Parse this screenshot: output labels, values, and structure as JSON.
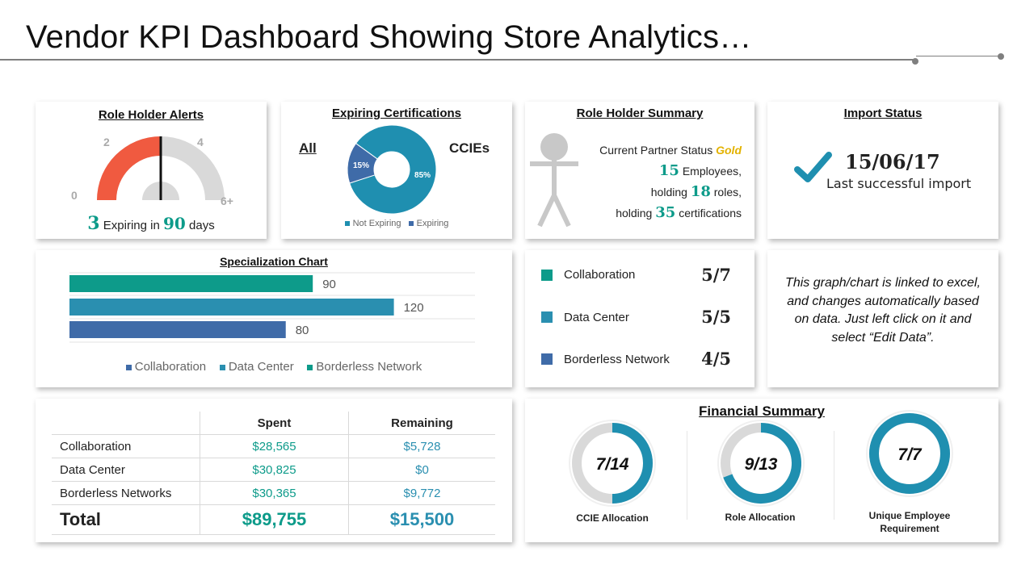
{
  "page": {
    "title": "Vendor KPI Dashboard Showing Store Analytics…"
  },
  "colors": {
    "teal": "#0d9b8a",
    "blue": "#2a8fb0",
    "navy": "#3f6ba8",
    "red": "#f05a40",
    "grey": "#d9d9d9",
    "gold": "#e3b200",
    "check": "#1f8fb0"
  },
  "alerts": {
    "title": "Role Holder Alerts",
    "gauge_labels": [
      "0",
      "2",
      "4",
      "6+"
    ],
    "needle_value": 3,
    "count": "3",
    "text_mid": "Expiring in",
    "days": "90",
    "text_end": "days"
  },
  "certs": {
    "title": "Expiring Certifications",
    "left_label": "All",
    "right_label": "CCIEs",
    "slices": [
      {
        "name": "Not Expiring",
        "value": 85,
        "label": "85%"
      },
      {
        "name": "Expiring",
        "value": 15,
        "label": "15%"
      }
    ],
    "legend": [
      "Not Expiring",
      "Expiring"
    ]
  },
  "summary": {
    "title": "Role Holder Summary",
    "line1": "Current Partner Status",
    "status": "Gold",
    "employees": "15",
    "employees_text": "Employees,",
    "holding1": "holding",
    "roles": "18",
    "roles_text": "roles,",
    "holding2": "holding",
    "certs": "35",
    "certs_text": "certifications",
    "icon": "person-icon"
  },
  "import": {
    "title": "Import Status",
    "date": "15/06/17",
    "caption": "Last successful import",
    "icon": "checkmark-icon"
  },
  "chart_data": {
    "type": "bar",
    "title": "Specialization Chart",
    "orientation": "horizontal",
    "categories": [
      "Collaboration",
      "Data Center",
      "Borderless Network"
    ],
    "values": [
      90,
      120,
      80
    ],
    "xlim": [
      0,
      150
    ],
    "legend": [
      "Collaboration",
      "Data Center",
      "Borderless Network"
    ],
    "legend_position": "bottom",
    "grid": true
  },
  "specs": {
    "items": [
      {
        "label": "Collaboration",
        "value": "5/7"
      },
      {
        "label": "Data Center",
        "value": "5/5"
      },
      {
        "label": "Borderless Network",
        "value": "4/5"
      }
    ]
  },
  "note": {
    "text": "This graph/chart is linked to excel, and changes automatically based on data. Just left click on it and select “Edit Data”."
  },
  "table": {
    "headers": [
      "",
      "Spent",
      "Remaining"
    ],
    "rows": [
      [
        "Collaboration",
        "$28,565",
        "$5,728"
      ],
      [
        "Data Center",
        "$30,825",
        "$0"
      ],
      [
        "Borderless Networks",
        "$30,365",
        "$9,772"
      ]
    ],
    "total": [
      "Total",
      "$89,755",
      "$15,500"
    ]
  },
  "financial": {
    "title": "Financial Summary",
    "rings": [
      {
        "label": "CCIE Allocation",
        "value": "7/14",
        "fraction": 0.5
      },
      {
        "label": "Role Allocation",
        "value": "9/13",
        "fraction": 0.6923
      },
      {
        "label": "Unique Employee Requirement",
        "value": "7/7",
        "fraction": 1.0
      }
    ]
  }
}
